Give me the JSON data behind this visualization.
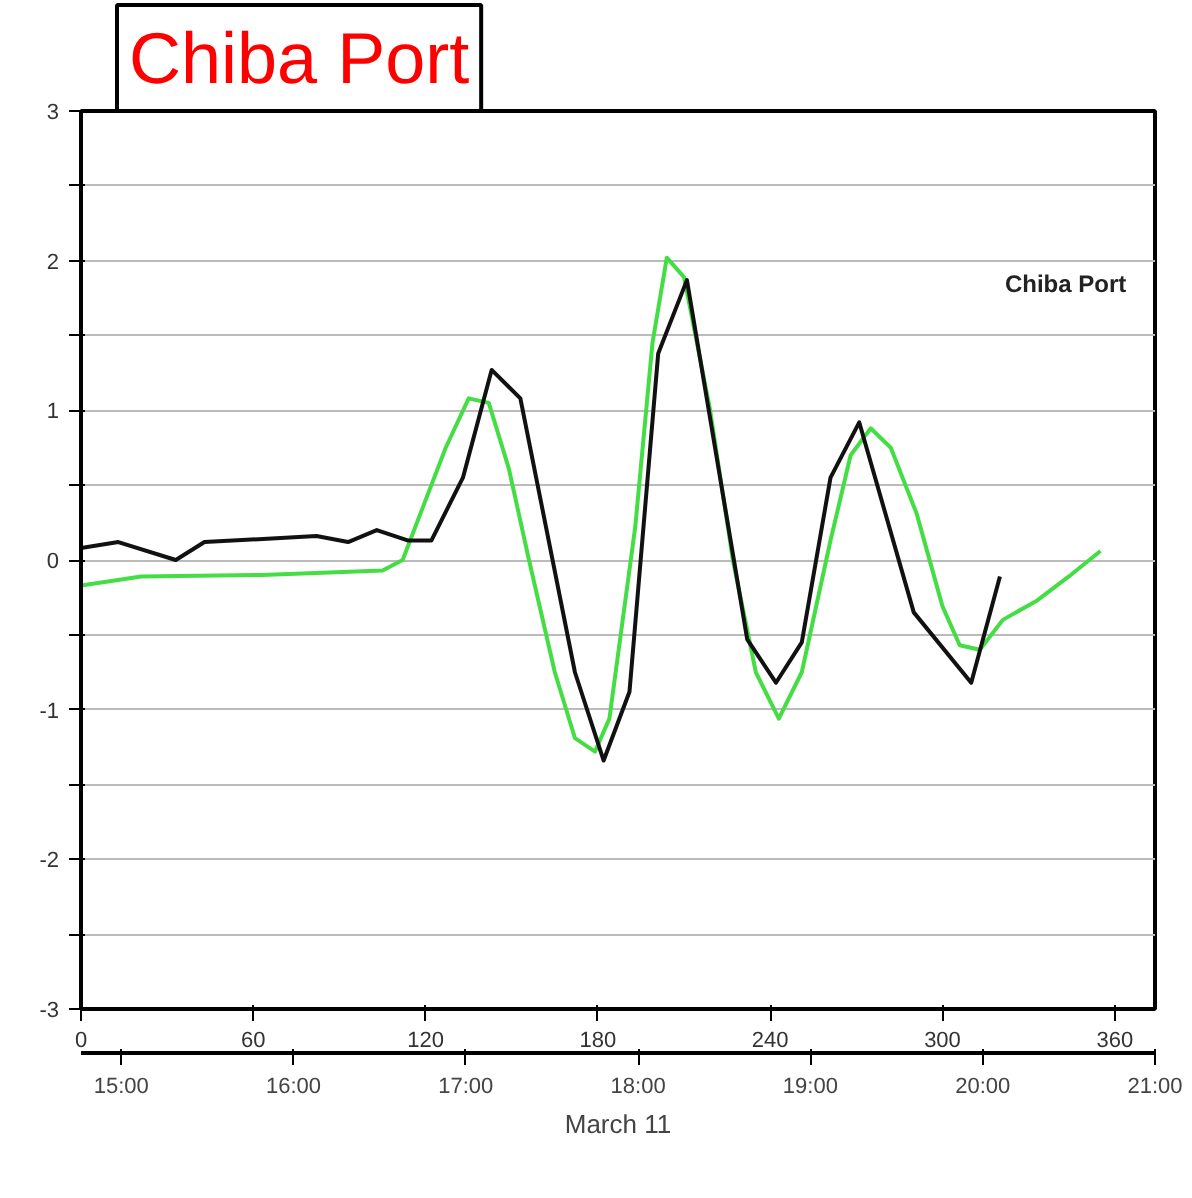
{
  "chart_data": {
    "type": "line",
    "title": "Chiba Port",
    "annotations": [
      "Chiba Port"
    ],
    "xlim": [
      0,
      374
    ],
    "xticks": [
      0,
      60,
      120,
      180,
      240,
      300,
      360
    ],
    "ylim": [
      -3,
      3
    ],
    "yticks": [
      -3,
      {
        "value": -2.5,
        "label": null
      },
      -2,
      {
        "value": -1.5,
        "label": null
      },
      -1,
      {
        "value": -0.5,
        "label": null
      },
      0,
      {
        "value": 0.5,
        "label": null
      },
      1,
      {
        "value": 1.5,
        "label": null
      },
      2,
      {
        "value": 2.5,
        "label": null
      },
      3
    ],
    "x2lim": [
      14.7667,
      21.0
    ],
    "x2ticks": [
      {
        "value": 15,
        "label": "15:00"
      },
      {
        "value": 16,
        "label": "16:00"
      },
      {
        "value": 17,
        "label": "17:00"
      },
      {
        "value": 18,
        "label": "18:00"
      },
      {
        "value": 19,
        "label": "19:00"
      },
      {
        "value": 20,
        "label": "20:00"
      },
      {
        "value": 21,
        "label": "21:00"
      }
    ],
    "x2label": "March 11",
    "grid": "y",
    "line_style": "solid",
    "series": [
      {
        "color": "#44dd44",
        "x": [
          0,
          21,
          63,
          105,
          112,
          119,
          127,
          135,
          142,
          149,
          156,
          165,
          172,
          179,
          184,
          193,
          199,
          204,
          210,
          219,
          227,
          235,
          243,
          251,
          261,
          268,
          275,
          282,
          291,
          300,
          306,
          313,
          321,
          333,
          344,
          355
        ],
        "values": [
          -0.17,
          -0.11,
          -0.1,
          -0.07,
          0.0,
          0.35,
          0.75,
          1.08,
          1.05,
          0.61,
          0.0,
          -0.75,
          -1.19,
          -1.28,
          -1.06,
          0.22,
          1.45,
          2.02,
          1.89,
          1.01,
          0.0,
          -0.75,
          -1.06,
          -0.75,
          0.13,
          0.7,
          0.88,
          0.75,
          0.31,
          -0.31,
          -0.57,
          -0.6,
          -0.4,
          -0.27,
          -0.11,
          0.06
        ]
      },
      {
        "color": "#111111",
        "x": [
          0,
          13,
          33,
          43,
          82,
          93,
          103,
          114,
          122,
          133,
          143,
          153,
          172,
          182,
          191,
          201,
          211,
          232,
          242,
          251,
          261,
          271,
          290,
          310,
          320
        ],
        "values": [
          0.08,
          0.12,
          0.0,
          0.12,
          0.16,
          0.12,
          0.2,
          0.13,
          0.13,
          0.55,
          1.27,
          1.08,
          -0.75,
          -1.34,
          -0.88,
          1.38,
          1.87,
          -0.53,
          -0.82,
          -0.55,
          0.55,
          0.92,
          -0.35,
          -0.82,
          -0.11
        ]
      }
    ]
  }
}
